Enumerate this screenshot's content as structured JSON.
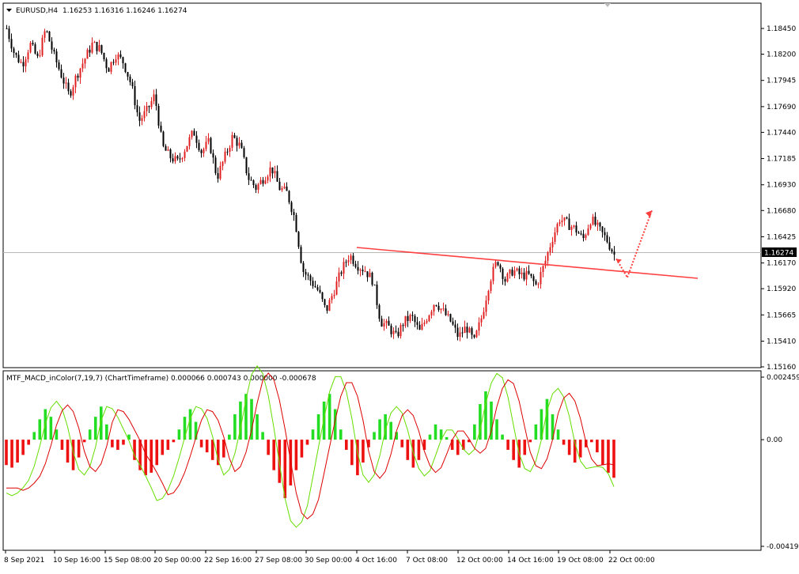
{
  "main_panel": {
    "symbol_label": "EURUSD,H4",
    "ohlc_label": "1.16253 1.16316 1.16246 1.16274",
    "current_price_label": "1.16274",
    "price_axis_labels": [
      "1.18450",
      "1.18200",
      "1.17945",
      "1.17690",
      "1.17440",
      "1.17185",
      "1.16930",
      "1.16680",
      "1.16425",
      "1.16170",
      "1.15920",
      "1.15665",
      "1.15410",
      "1.15160"
    ]
  },
  "indicator_panel": {
    "label": "MTF_MACD_inColor(7,19,7) (ChartTimeframe) 0.000066 0.000743 0.000000 -0.000678",
    "axis_labels": [
      "0.002459",
      "0.00",
      "-0.004195"
    ]
  },
  "time_axis_labels": [
    "8 Sep 2021",
    "10 Sep 16:00",
    "15 Sep 08:00",
    "20 Sep 00:00",
    "22 Sep 16:00",
    "27 Sep 08:00",
    "30 Sep 00:00",
    "4 Oct 16:00",
    "7 Oct 08:00",
    "12 Oct 00:00",
    "14 Oct 16:00",
    "19 Oct 08:00",
    "22 Oct 00:00"
  ],
  "colors": {
    "bull_candle": "#e02020",
    "bear_candle": "#000000",
    "trendline": "#ff4040",
    "macd_up": "#22dd22",
    "macd_down": "#ee1111",
    "signal_green": "#66dd00",
    "signal_red": "#dd0000",
    "current_price_bg": "#000000"
  },
  "chart_data": {
    "type": "candlestick",
    "price_axis": {
      "ylim": [
        1.151,
        1.186
      ]
    },
    "candle_anchor_closes": [
      1.1845,
      1.182,
      1.181,
      1.183,
      1.1815,
      1.1845,
      1.182,
      1.18,
      1.178,
      1.18,
      1.1815,
      1.183,
      1.1825,
      1.1805,
      1.182,
      1.1812,
      1.179,
      1.1755,
      1.1765,
      1.178,
      1.173,
      1.172,
      1.1715,
      1.173,
      1.1745,
      1.1725,
      1.1735,
      1.17,
      1.172,
      1.174,
      1.173,
      1.17,
      1.169,
      1.17,
      1.171,
      1.169,
      1.1685,
      1.166,
      1.161,
      1.16,
      1.159,
      1.157,
      1.159,
      1.161,
      1.1625,
      1.1615,
      1.161,
      1.16,
      1.156,
      1.1555,
      1.1545,
      1.156,
      1.1565,
      1.155,
      1.1565,
      1.158,
      1.157,
      1.156,
      1.1545,
      1.1555,
      1.154,
      1.1565,
      1.16,
      1.162,
      1.16,
      1.161,
      1.1605,
      1.1605,
      1.1595,
      1.1615,
      1.164,
      1.166,
      1.1655,
      1.165,
      1.164,
      1.166,
      1.165,
      1.164,
      1.1625
    ],
    "trendline": {
      "from": [
        "4 Oct 16:00",
        1.1634
      ],
      "to": [
        "22 Oct 00:00",
        1.1598
      ]
    },
    "projection_arrows": [
      {
        "direction": "down",
        "from": 1.1621,
        "to": 1.1603
      },
      {
        "direction": "up",
        "from": 1.1603,
        "to": 1.1668
      }
    ],
    "macd": {
      "ylim": [
        -0.004195,
        0.002459
      ],
      "histogram": [
        -0.001,
        -0.0011,
        -0.0009,
        -0.0006,
        -0.0002,
        0.0003,
        0.0008,
        0.0012,
        0.0009,
        0.0004,
        -0.0004,
        -0.0009,
        -0.0012,
        -0.0007,
        -0.0001,
        0.0004,
        0.0009,
        0.0013,
        0.0006,
        -0.0003,
        -0.0004,
        -0.0002,
        0.0002,
        -0.0008,
        -0.0012,
        -0.0014,
        -0.0013,
        -0.001,
        -0.0006,
        -0.0004,
        -0.0001,
        0.0004,
        0.0009,
        0.0012,
        0.0007,
        -0.0003,
        -0.0005,
        -0.0008,
        -0.001,
        -0.0007,
        0.0002,
        0.001,
        0.0015,
        0.0018,
        0.0016,
        0.001,
        0.0003,
        -0.0006,
        -0.0012,
        -0.0017,
        -0.0023,
        -0.0018,
        -0.0012,
        -0.0007,
        -0.0002,
        0.0004,
        0.001,
        0.0015,
        0.0018,
        0.0012,
        0.0004,
        -0.0004,
        -0.001,
        -0.0014,
        -0.0009,
        -0.0003,
        0.0003,
        0.0008,
        0.001,
        0.0007,
        0.0003,
        -0.0003,
        -0.0008,
        -0.0011,
        -0.0008,
        -0.0004,
        0.0002,
        0.0006,
        0.0004,
        0.0001,
        -0.0004,
        -0.0006,
        -0.0004,
        -0.0001,
        0.0006,
        0.0014,
        0.0019,
        0.0015,
        0.0008,
        0.0002,
        -0.0004,
        -0.0008,
        -0.0011,
        -0.0006,
        -0.0001,
        0.0006,
        0.0012,
        0.0016,
        0.001,
        0.0004,
        -0.0002,
        -0.0006,
        -0.0009,
        -0.0007,
        -0.0003,
        -0.0001,
        -0.0005,
        -0.001,
        -0.0013,
        -0.0015
      ]
    }
  }
}
